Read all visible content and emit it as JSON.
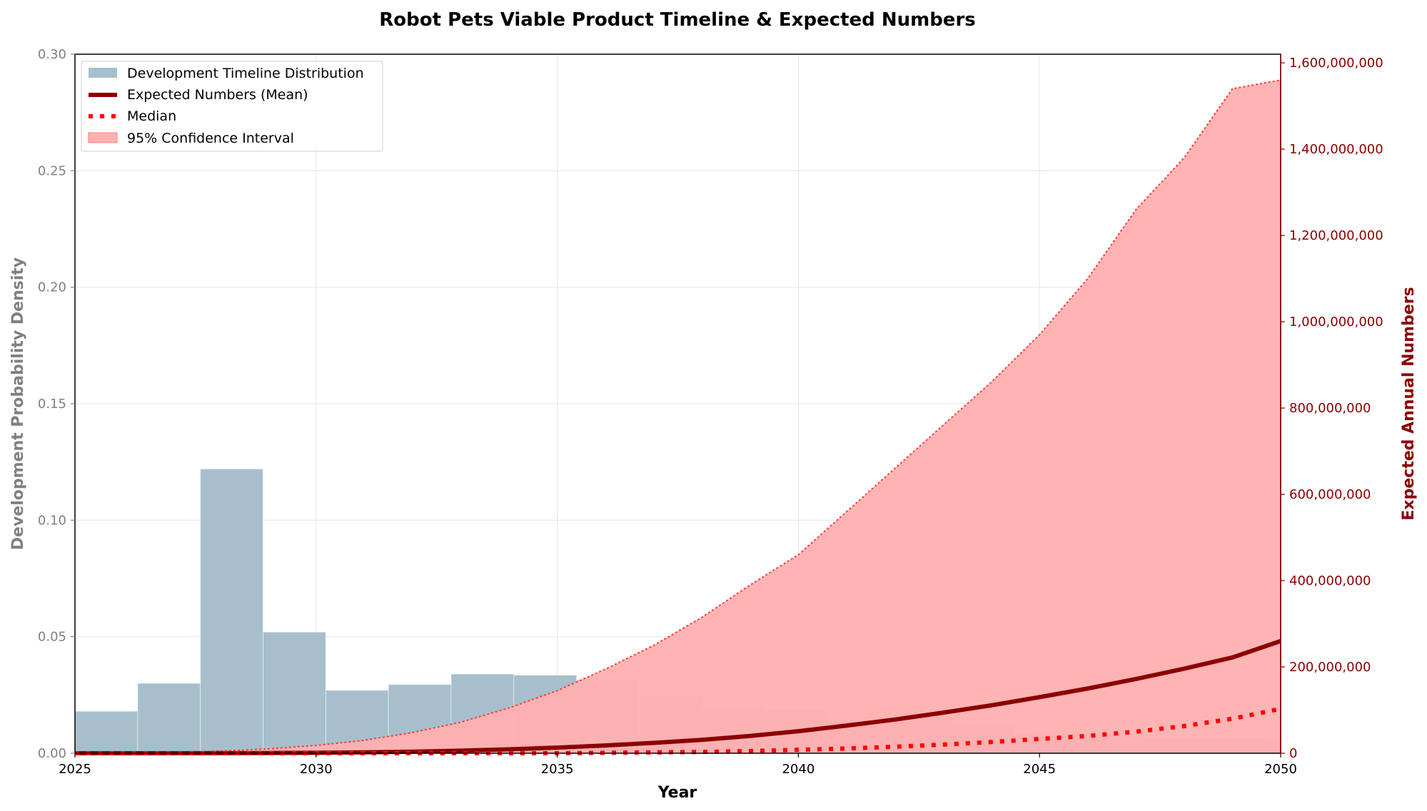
{
  "chart_data": {
    "type": "bar+line",
    "title": "Robot Pets Viable Product Timeline & Expected Numbers",
    "xlabel": "Year",
    "ylabel_left": "Development Probability Density",
    "ylabel_right": "Expected Annual Numbers",
    "xlim": [
      2025,
      2050
    ],
    "ylim_left": [
      0,
      0.3
    ],
    "ylim_right": [
      0,
      1620000000
    ],
    "x_ticks": [
      "2025",
      "2030",
      "2035",
      "2040",
      "2045",
      "2050"
    ],
    "y_left_ticks": [
      "0.00",
      "0.05",
      "0.10",
      "0.15",
      "0.20",
      "0.25",
      "0.30"
    ],
    "y_right_ticks": [
      "0",
      "200,000,000",
      "400,000,000",
      "600,000,000",
      "800,000,000",
      "1,000,000,000",
      "1,200,000,000",
      "1,400,000,000",
      "1,600,000,000"
    ],
    "grid": true,
    "legend_position": "top-left",
    "histogram": {
      "name": "Development Timeline Distribution",
      "color": "#a7bfcc",
      "bin_width": 1.3,
      "bin_starts": [
        2025.0,
        2026.3,
        2027.6,
        2028.9,
        2030.2,
        2031.5,
        2032.8,
        2034.1,
        2035.4,
        2036.7,
        2038.0,
        2039.3,
        2040.6,
        2041.9,
        2043.2,
        2044.5,
        2045.8,
        2047.1,
        2048.4,
        2049.7
      ],
      "values": [
        0.018,
        0.03,
        0.122,
        0.052,
        0.027,
        0.0295,
        0.034,
        0.0335,
        0.0315,
        0.025,
        0.0195,
        0.0183,
        0.014,
        0.0155,
        0.0125,
        0.0083,
        0.0078,
        0.0068,
        0.0065,
        0.0058
      ]
    },
    "series": [
      {
        "name": "Expected Numbers (Mean)",
        "color": "#8b0000",
        "x": [
          2025,
          2026,
          2027,
          2028,
          2029,
          2030,
          2031,
          2032,
          2033,
          2034,
          2035,
          2036,
          2037,
          2038,
          2039,
          2040,
          2041,
          2042,
          2043,
          2044,
          2045,
          2046,
          2047,
          2048,
          2049,
          2050
        ],
        "values": [
          0,
          0,
          0,
          200000,
          500000,
          1000000,
          2000000,
          3500000,
          6000000,
          9000000,
          13000000,
          18000000,
          24000000,
          31000000,
          40000000,
          51000000,
          64000000,
          78000000,
          94000000,
          111000000,
          130000000,
          150000000,
          172000000,
          196000000,
          222000000,
          260000000
        ]
      },
      {
        "name": "Median",
        "color": "#ff0000",
        "x": [
          2025,
          2026,
          2027,
          2028,
          2029,
          2030,
          2031,
          2032,
          2033,
          2034,
          2035,
          2036,
          2037,
          2038,
          2039,
          2040,
          2041,
          2042,
          2043,
          2044,
          2045,
          2046,
          2047,
          2048,
          2049,
          2050
        ],
        "values": [
          0,
          0,
          0,
          0,
          0,
          0,
          0,
          0,
          0,
          0,
          0,
          1000000,
          2000000,
          3000000,
          5000000,
          8000000,
          11000000,
          15000000,
          20000000,
          26000000,
          33000000,
          40000000,
          50000000,
          63000000,
          80000000,
          103000000
        ]
      }
    ],
    "confidence_interval": {
      "name": "95% Confidence Interval",
      "color": "#ffb0b0",
      "x": [
        2025,
        2026,
        2027,
        2028,
        2029,
        2030,
        2031,
        2032,
        2033,
        2034,
        2035,
        2036,
        2037,
        2038,
        2039,
        2040,
        2041,
        2042,
        2043,
        2044,
        2045,
        2046,
        2047,
        2048,
        2049,
        2050
      ],
      "lower": [
        0,
        0,
        0,
        0,
        0,
        0,
        0,
        0,
        0,
        0,
        0,
        0,
        0,
        0,
        0,
        0,
        0,
        0,
        0,
        0,
        0,
        0,
        0,
        0,
        0,
        0
      ],
      "upper": [
        0,
        0,
        1000000,
        5000000,
        10000000,
        18000000,
        30000000,
        48000000,
        72000000,
        105000000,
        145000000,
        195000000,
        250000000,
        315000000,
        390000000,
        460000000,
        560000000,
        660000000,
        760000000,
        860000000,
        970000000,
        1100000000,
        1260000000,
        1380000000,
        1540000000,
        1560000000
      ]
    }
  }
}
